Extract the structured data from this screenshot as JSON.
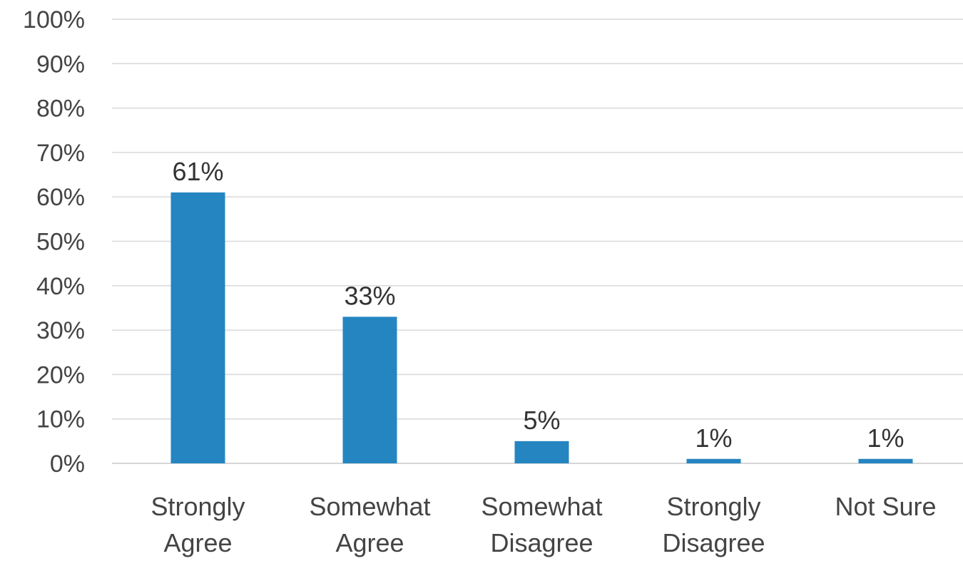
{
  "chart_data": {
    "type": "bar",
    "categories": [
      [
        "Strongly",
        "Agree"
      ],
      [
        "Somewhat",
        "Agree"
      ],
      [
        "Somewhat",
        "Disagree"
      ],
      [
        "Strongly",
        "Disagree"
      ],
      [
        "Not Sure"
      ]
    ],
    "values": [
      61,
      33,
      5,
      1,
      1
    ],
    "data_labels": [
      "61%",
      "33%",
      "5%",
      "1%",
      "1%"
    ],
    "ylim": [
      0,
      100
    ],
    "y_ticks": [
      {
        "value": 0,
        "label": "0%"
      },
      {
        "value": 10,
        "label": "10%"
      },
      {
        "value": 20,
        "label": "20%"
      },
      {
        "value": 30,
        "label": "30%"
      },
      {
        "value": 40,
        "label": "40%"
      },
      {
        "value": 50,
        "label": "50%"
      },
      {
        "value": 60,
        "label": "60%"
      },
      {
        "value": 70,
        "label": "70%"
      },
      {
        "value": 80,
        "label": "80%"
      },
      {
        "value": 90,
        "label": "90%"
      },
      {
        "value": 100,
        "label": "100%"
      }
    ],
    "grid": true,
    "legend": "none",
    "title": "",
    "xlabel": "",
    "ylabel": "",
    "colors": {
      "bar": "#2585c1",
      "grid": "#d9d9d9",
      "axis": "#c8c8c8"
    }
  }
}
